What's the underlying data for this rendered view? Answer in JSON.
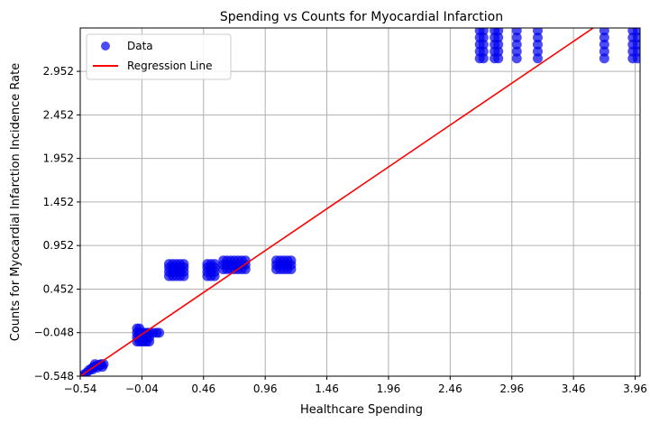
{
  "chart_data": {
    "type": "scatter",
    "title": "Spending vs Counts for Myocardial Infarction",
    "xlabel": "Healthcare Spending",
    "ylabel": "Counts for Myocardial Infarction Incidence Rate",
    "xlim": [
      -0.54,
      4.0
    ],
    "ylim": [
      -0.548,
      3.45
    ],
    "xticks": [
      -0.54,
      -0.04,
      0.46,
      0.96,
      1.46,
      1.96,
      2.46,
      2.96,
      3.46,
      3.96
    ],
    "xtick_labels": [
      "−0.54",
      "−0.04",
      "0.46",
      "0.96",
      "1.46",
      "1.96",
      "2.46",
      "2.96",
      "3.46",
      "3.96"
    ],
    "yticks": [
      -0.548,
      -0.048,
      0.452,
      0.952,
      1.452,
      1.952,
      2.452,
      2.952
    ],
    "ytick_labels": [
      "−0.548",
      "−0.048",
      "0.452",
      "0.952",
      "1.452",
      "1.952",
      "2.452",
      "2.952"
    ],
    "grid": true,
    "legend": {
      "position": "top-left",
      "entries": [
        "Data",
        "Regression Line"
      ]
    },
    "colors": {
      "data": "#0000ee",
      "regression": "#ff0000",
      "grid": "#b0b0b0"
    },
    "series": [
      {
        "name": "Data",
        "type": "scatter",
        "points": [
          [
            -0.54,
            -0.55
          ],
          [
            -0.51,
            -0.53
          ],
          [
            -0.49,
            -0.51
          ],
          [
            -0.47,
            -0.48
          ],
          [
            -0.45,
            -0.46
          ],
          [
            -0.43,
            -0.44
          ],
          [
            -0.41,
            -0.43
          ],
          [
            -0.39,
            -0.42
          ],
          [
            -0.37,
            -0.41
          ],
          [
            -0.35,
            -0.41
          ],
          [
            -0.44,
            -0.47
          ],
          [
            -0.4,
            -0.45
          ],
          [
            -0.36,
            -0.44
          ],
          [
            -0.42,
            -0.41
          ],
          [
            -0.38,
            -0.42
          ],
          [
            -0.08,
            -0.1
          ],
          [
            -0.06,
            -0.1
          ],
          [
            -0.04,
            -0.1
          ],
          [
            -0.02,
            -0.1
          ],
          [
            0.0,
            -0.1
          ],
          [
            0.02,
            -0.1
          ],
          [
            -0.08,
            -0.05
          ],
          [
            -0.06,
            -0.05
          ],
          [
            -0.04,
            -0.05
          ],
          [
            -0.02,
            -0.05
          ],
          [
            0.0,
            -0.05
          ],
          [
            0.02,
            -0.05
          ],
          [
            -0.08,
            -0.15
          ],
          [
            -0.06,
            -0.15
          ],
          [
            -0.04,
            -0.15
          ],
          [
            -0.02,
            -0.15
          ],
          [
            0.0,
            -0.15
          ],
          [
            0.02,
            -0.15
          ],
          [
            -0.08,
            -0.0
          ],
          [
            -0.06,
            -0.0
          ],
          [
            0.05,
            -0.05
          ],
          [
            0.08,
            -0.05
          ],
          [
            0.1,
            -0.05
          ],
          [
            0.18,
            0.6
          ],
          [
            0.21,
            0.6
          ],
          [
            0.24,
            0.6
          ],
          [
            0.27,
            0.6
          ],
          [
            0.3,
            0.6
          ],
          [
            0.18,
            0.65
          ],
          [
            0.21,
            0.65
          ],
          [
            0.24,
            0.65
          ],
          [
            0.27,
            0.65
          ],
          [
            0.3,
            0.65
          ],
          [
            0.18,
            0.7
          ],
          [
            0.21,
            0.7
          ],
          [
            0.24,
            0.7
          ],
          [
            0.27,
            0.7
          ],
          [
            0.3,
            0.7
          ],
          [
            0.18,
            0.74
          ],
          [
            0.21,
            0.74
          ],
          [
            0.24,
            0.74
          ],
          [
            0.27,
            0.74
          ],
          [
            0.3,
            0.74
          ],
          [
            0.49,
            0.6
          ],
          [
            0.52,
            0.6
          ],
          [
            0.55,
            0.6
          ],
          [
            0.49,
            0.65
          ],
          [
            0.52,
            0.65
          ],
          [
            0.55,
            0.65
          ],
          [
            0.49,
            0.7
          ],
          [
            0.52,
            0.7
          ],
          [
            0.55,
            0.7
          ],
          [
            0.49,
            0.74
          ],
          [
            0.52,
            0.74
          ],
          [
            0.55,
            0.74
          ],
          [
            0.62,
            0.68
          ],
          [
            0.65,
            0.68
          ],
          [
            0.68,
            0.68
          ],
          [
            0.71,
            0.68
          ],
          [
            0.74,
            0.68
          ],
          [
            0.77,
            0.68
          ],
          [
            0.8,
            0.68
          ],
          [
            0.62,
            0.73
          ],
          [
            0.65,
            0.73
          ],
          [
            0.68,
            0.73
          ],
          [
            0.71,
            0.73
          ],
          [
            0.74,
            0.73
          ],
          [
            0.77,
            0.73
          ],
          [
            0.8,
            0.73
          ],
          [
            0.62,
            0.78
          ],
          [
            0.65,
            0.78
          ],
          [
            0.68,
            0.78
          ],
          [
            0.71,
            0.78
          ],
          [
            0.74,
            0.78
          ],
          [
            0.77,
            0.78
          ],
          [
            0.8,
            0.78
          ],
          [
            1.05,
            0.68
          ],
          [
            1.08,
            0.68
          ],
          [
            1.11,
            0.68
          ],
          [
            1.14,
            0.68
          ],
          [
            1.17,
            0.68
          ],
          [
            1.05,
            0.73
          ],
          [
            1.08,
            0.73
          ],
          [
            1.11,
            0.73
          ],
          [
            1.14,
            0.73
          ],
          [
            1.17,
            0.73
          ],
          [
            1.05,
            0.78
          ],
          [
            1.08,
            0.78
          ],
          [
            1.11,
            0.78
          ],
          [
            1.14,
            0.78
          ],
          [
            1.17,
            0.78
          ],
          [
            2.7,
            3.1
          ],
          [
            2.7,
            3.18
          ],
          [
            2.7,
            3.26
          ],
          [
            2.7,
            3.34
          ],
          [
            2.7,
            3.42
          ],
          [
            2.73,
            3.1
          ],
          [
            2.73,
            3.18
          ],
          [
            2.73,
            3.26
          ],
          [
            2.73,
            3.34
          ],
          [
            2.73,
            3.42
          ],
          [
            2.82,
            3.1
          ],
          [
            2.82,
            3.18
          ],
          [
            2.82,
            3.26
          ],
          [
            2.82,
            3.34
          ],
          [
            2.82,
            3.42
          ],
          [
            2.85,
            3.1
          ],
          [
            2.85,
            3.18
          ],
          [
            2.85,
            3.26
          ],
          [
            2.85,
            3.34
          ],
          [
            2.85,
            3.42
          ],
          [
            3.0,
            3.1
          ],
          [
            3.0,
            3.18
          ],
          [
            3.0,
            3.26
          ],
          [
            3.0,
            3.34
          ],
          [
            3.0,
            3.42
          ],
          [
            3.17,
            3.1
          ],
          [
            3.17,
            3.18
          ],
          [
            3.17,
            3.26
          ],
          [
            3.17,
            3.34
          ],
          [
            3.17,
            3.42
          ],
          [
            3.71,
            3.1
          ],
          [
            3.71,
            3.18
          ],
          [
            3.71,
            3.26
          ],
          [
            3.71,
            3.34
          ],
          [
            3.71,
            3.42
          ],
          [
            3.94,
            3.1
          ],
          [
            3.94,
            3.18
          ],
          [
            3.94,
            3.26
          ],
          [
            3.94,
            3.34
          ],
          [
            3.94,
            3.42
          ],
          [
            3.98,
            3.1
          ],
          [
            3.98,
            3.18
          ],
          [
            3.98,
            3.26
          ],
          [
            3.98,
            3.34
          ],
          [
            3.98,
            3.42
          ]
        ]
      },
      {
        "name": "Regression Line",
        "type": "line",
        "points": [
          [
            -0.54,
            -0.548
          ],
          [
            3.62,
            3.45
          ]
        ]
      }
    ]
  }
}
